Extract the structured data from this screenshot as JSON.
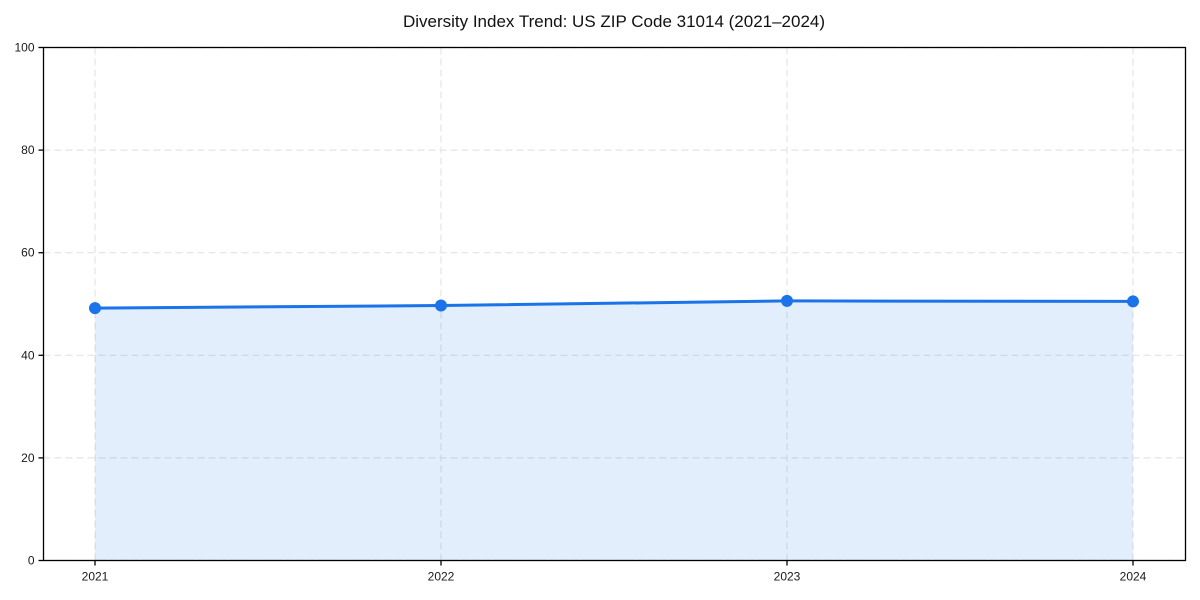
{
  "chart_data": {
    "type": "line",
    "title": "Diversity Index Trend: US ZIP Code 31014 (2021–2024)",
    "x": [
      "2021",
      "2022",
      "2023",
      "2024"
    ],
    "series": [
      {
        "name": "Diversity Index",
        "values": [
          49.2,
          49.7,
          50.6,
          50.5
        ]
      }
    ],
    "xlabel": "",
    "ylabel": "",
    "ylim": [
      0,
      100
    ],
    "yticks": [
      0,
      20,
      40,
      60,
      80,
      100
    ],
    "grid": "dashed, light gray, both axes",
    "legend_position": "none",
    "area_fill_between_first_and_last_x": true,
    "colors": {
      "line": "#1a73e8",
      "marker": "#1a73e8",
      "area_fill": "rgba(26,115,232,0.12)",
      "gridline": "#e4e4e4",
      "spine": "#000000",
      "tick_label": "#1a1a1a",
      "background": "#ffffff"
    }
  }
}
